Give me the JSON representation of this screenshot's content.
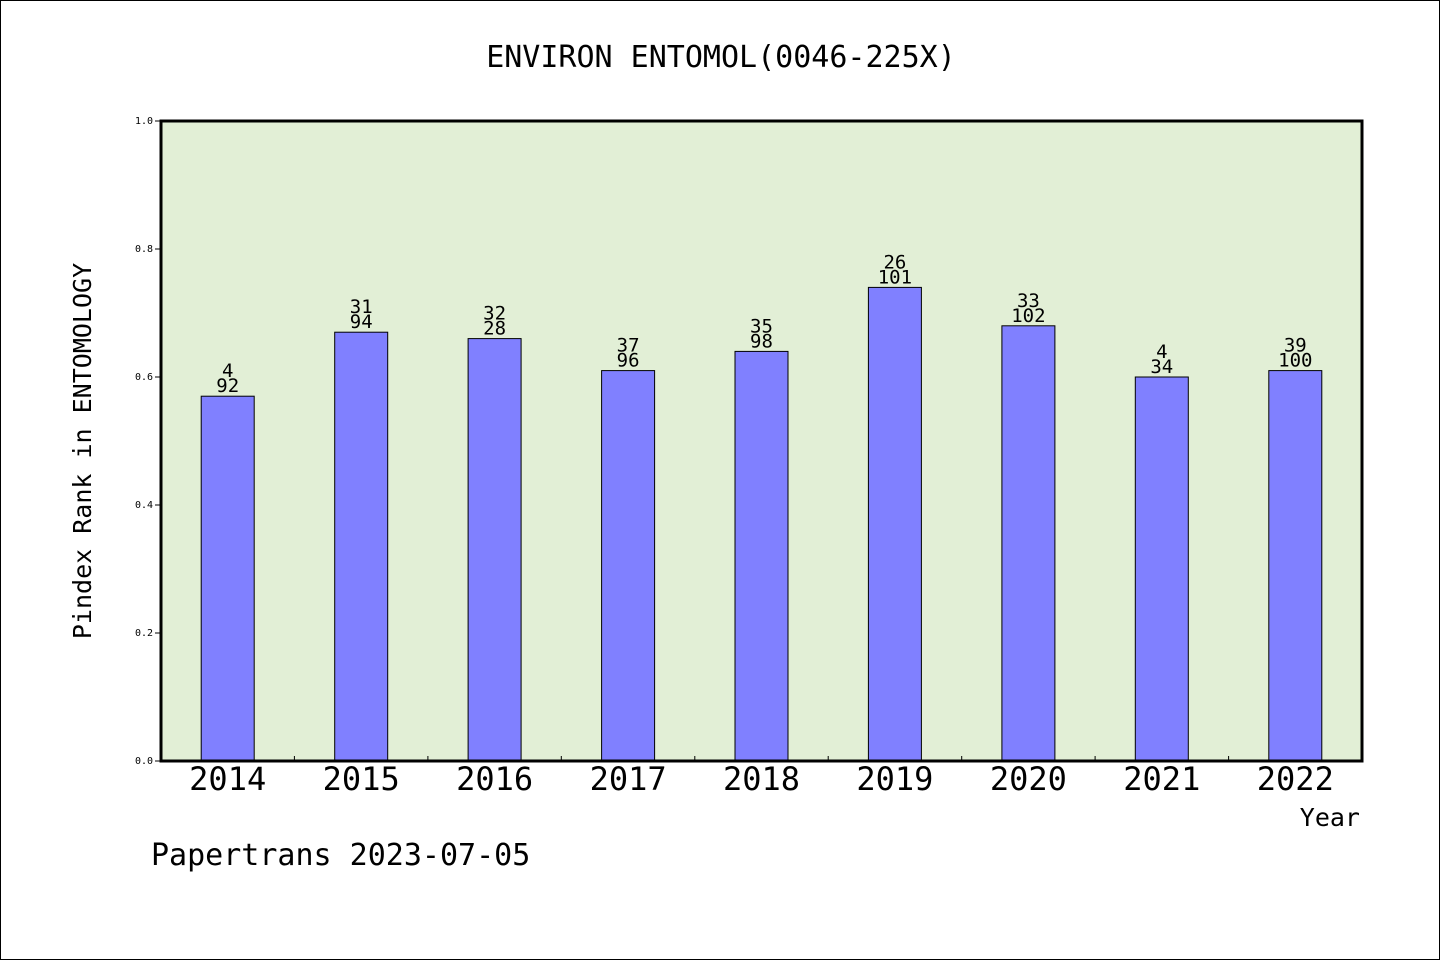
{
  "chart_data": {
    "type": "bar",
    "title": "ENVIRON ENTOMOL(0046-225X)",
    "xlabel": "Year",
    "ylabel": "Pindex Rank in ENTOMOLOGY",
    "ylim": [
      0,
      1.0
    ],
    "yticks": [
      "0.0",
      "0.2",
      "0.4",
      "0.6",
      "0.8",
      "1.0"
    ],
    "categories": [
      "2014",
      "2015",
      "2016",
      "2017",
      "2018",
      "2019",
      "2020",
      "2021",
      "2022"
    ],
    "values": [
      0.57,
      0.67,
      0.66,
      0.61,
      0.64,
      0.74,
      0.68,
      0.6,
      0.61
    ],
    "labels_top": [
      "4",
      "31",
      "32",
      "37",
      "35",
      "26",
      "33",
      "4",
      "39"
    ],
    "labels_bottom": [
      "92",
      "94",
      "28",
      "96",
      "98",
      "101",
      "102",
      "34",
      "100"
    ],
    "grid": false,
    "colors": {
      "bar": "#8080ff",
      "plot_bg": "#e2efd6",
      "axis": "#000000"
    }
  },
  "footer": "Papertrans 2023-07-05"
}
